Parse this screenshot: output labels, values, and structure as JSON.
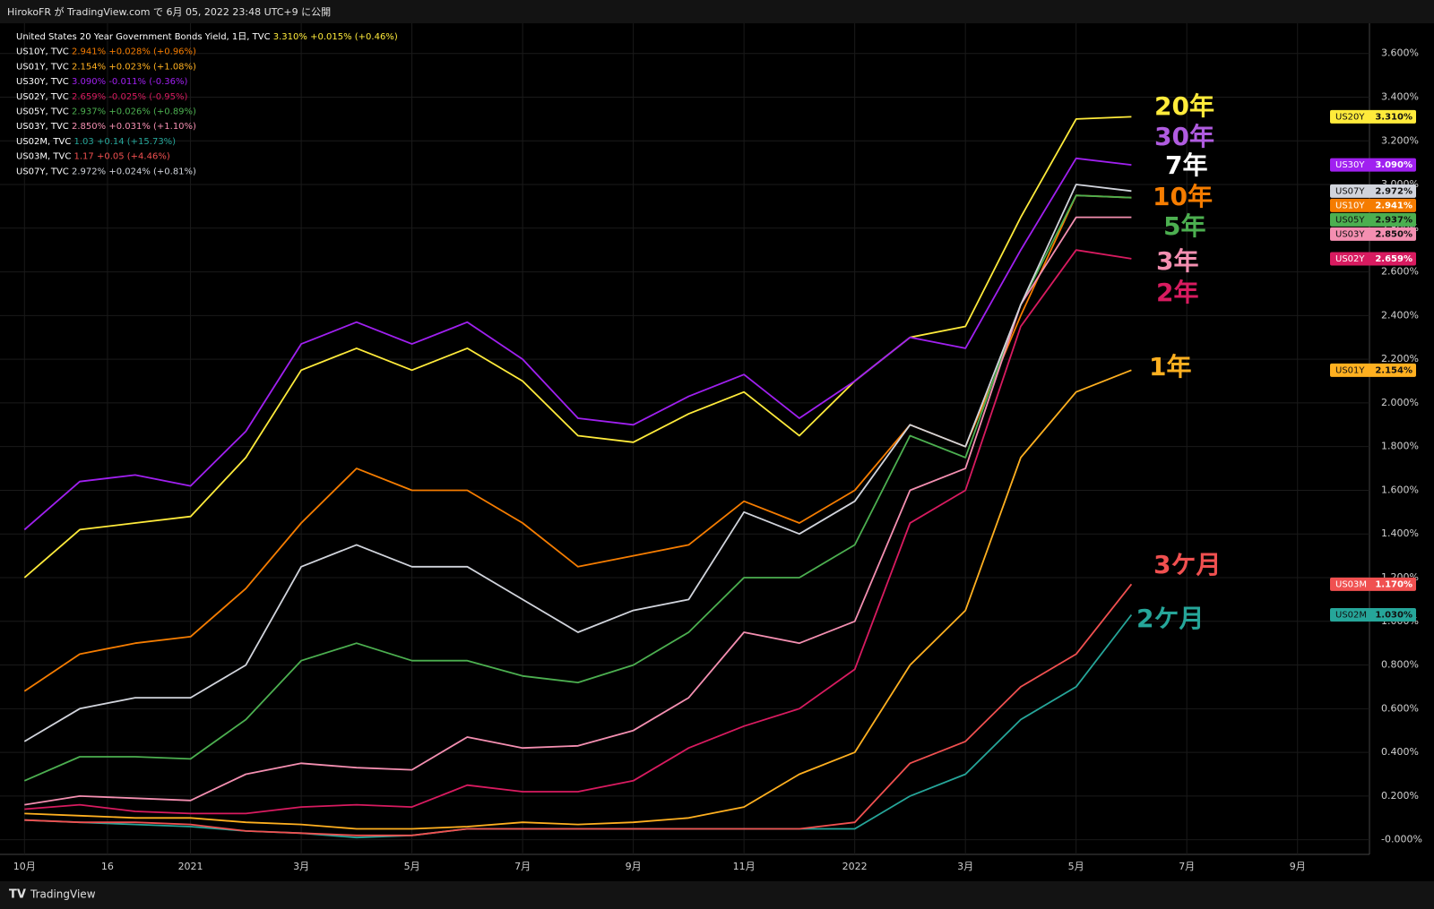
{
  "header": "HirokoFR が TradingView.com で 6月 05, 2022 23:48 UTC+9 に公開",
  "footer": "TradingView",
  "chart_data": {
    "type": "line",
    "x": [
      0,
      1,
      2,
      3,
      4,
      5,
      6,
      7,
      8,
      9,
      10,
      11,
      12,
      13,
      14,
      15,
      16,
      17,
      18,
      19,
      20
    ],
    "xlim": [
      -0.28,
      24.3
    ],
    "xticks": [
      {
        "value": 0,
        "label": "10月"
      },
      {
        "value": 1.5,
        "label": "16"
      },
      {
        "value": 3,
        "label": "2021"
      },
      {
        "value": 5,
        "label": "3月"
      },
      {
        "value": 7,
        "label": "5月"
      },
      {
        "value": 9,
        "label": "7月"
      },
      {
        "value": 11,
        "label": "9月"
      },
      {
        "value": 13,
        "label": "11月"
      },
      {
        "value": 15,
        "label": "2022"
      },
      {
        "value": 17,
        "label": "3月"
      },
      {
        "value": 19,
        "label": "5月"
      },
      {
        "value": 21,
        "label": "7月"
      },
      {
        "value": 23,
        "label": "9月"
      }
    ],
    "ylim": [
      -0.067,
      3.73
    ],
    "yticks": [
      {
        "value": 0,
        "label": "-0.000%"
      },
      {
        "value": 0.2,
        "label": "0.200%"
      },
      {
        "value": 0.4,
        "label": "0.400%"
      },
      {
        "value": 0.6,
        "label": "0.600%"
      },
      {
        "value": 0.8,
        "label": "0.800%"
      },
      {
        "value": 1.0,
        "label": "1.000%"
      },
      {
        "value": 1.2,
        "label": "1.200%"
      },
      {
        "value": 1.4,
        "label": "1.400%"
      },
      {
        "value": 1.6,
        "label": "1.600%"
      },
      {
        "value": 1.8,
        "label": "1.800%"
      },
      {
        "value": 2.0,
        "label": "2.000%"
      },
      {
        "value": 2.2,
        "label": "2.200%"
      },
      {
        "value": 2.4,
        "label": "2.400%"
      },
      {
        "value": 2.6,
        "label": "2.600%"
      },
      {
        "value": 2.8,
        "label": "2.800%"
      },
      {
        "value": 3.0,
        "label": "3.000%"
      },
      {
        "value": 3.2,
        "label": "3.200%"
      },
      {
        "value": 3.4,
        "label": "3.400%"
      },
      {
        "value": 3.6,
        "label": "3.600%"
      }
    ],
    "grid": true,
    "series": [
      {
        "name": "United States 20 Year Government Bonds Yield, 1日, TVC",
        "last_label": "3.310%",
        "change_label": "+0.015% (+0.46%)",
        "tag": "US20Y",
        "tag_label": "3.310%",
        "color": "#ffeb3b",
        "values": [
          1.2,
          1.42,
          1.45,
          1.48,
          1.75,
          2.15,
          2.25,
          2.15,
          2.25,
          2.1,
          1.85,
          1.82,
          1.95,
          2.05,
          1.85,
          2.1,
          2.3,
          2.35,
          2.85,
          3.3,
          3.31
        ]
      },
      {
        "name": "US10Y, TVC",
        "last_label": "2.941%",
        "change_label": "+0.028% (+0.96%)",
        "tag": "US10Y",
        "tag_label": "2.941%",
        "color": "#f57c00",
        "values": [
          0.68,
          0.85,
          0.9,
          0.93,
          1.15,
          1.45,
          1.7,
          1.6,
          1.6,
          1.45,
          1.25,
          1.3,
          1.35,
          1.55,
          1.45,
          1.6,
          1.9,
          1.8,
          2.4,
          2.95,
          2.94
        ]
      },
      {
        "name": "US01Y, TVC",
        "last_label": "2.154%",
        "change_label": "+0.023% (+1.08%)",
        "tag": "US01Y",
        "tag_label": "2.154%",
        "color": "#ffb020",
        "values": [
          0.12,
          0.11,
          0.1,
          0.1,
          0.08,
          0.07,
          0.05,
          0.05,
          0.06,
          0.08,
          0.07,
          0.08,
          0.1,
          0.15,
          0.3,
          0.4,
          0.8,
          1.05,
          1.75,
          2.05,
          2.15
        ]
      },
      {
        "name": "US30Y, TVC",
        "last_label": "3.090%",
        "change_label": "-0.011% (-0.36%)",
        "tag": "US30Y",
        "tag_label": "3.090%",
        "color": "#a020f0",
        "values": [
          1.42,
          1.64,
          1.67,
          1.62,
          1.87,
          2.27,
          2.37,
          2.27,
          2.37,
          2.2,
          1.93,
          1.9,
          2.03,
          2.13,
          1.93,
          2.1,
          2.3,
          2.25,
          2.7,
          3.12,
          3.09
        ]
      },
      {
        "name": "US02Y, TVC",
        "last_label": "2.659%",
        "change_label": "-0.025% (-0.95%)",
        "tag": "US02Y",
        "tag_label": "2.659%",
        "color": "#d81b60",
        "values": [
          0.14,
          0.16,
          0.13,
          0.12,
          0.12,
          0.15,
          0.16,
          0.15,
          0.25,
          0.22,
          0.22,
          0.27,
          0.42,
          0.52,
          0.6,
          0.78,
          1.45,
          1.6,
          2.35,
          2.7,
          2.66
        ]
      },
      {
        "name": "US05Y, TVC",
        "last_label": "2.937%",
        "change_label": "+0.026% (+0.89%)",
        "tag": "US05Y",
        "tag_label": "2.937%",
        "color": "#4caf50",
        "values": [
          0.27,
          0.38,
          0.38,
          0.37,
          0.55,
          0.82,
          0.9,
          0.82,
          0.82,
          0.75,
          0.72,
          0.8,
          0.95,
          1.2,
          1.2,
          1.35,
          1.85,
          1.75,
          2.45,
          2.95,
          2.94
        ]
      },
      {
        "name": "US03Y, TVC",
        "last_label": "2.850%",
        "change_label": "+0.031% (+1.10%)",
        "tag": "US03Y",
        "tag_label": "2.850%",
        "color": "#f48fb1",
        "values": [
          0.16,
          0.2,
          0.19,
          0.18,
          0.3,
          0.35,
          0.33,
          0.32,
          0.47,
          0.42,
          0.43,
          0.5,
          0.65,
          0.95,
          0.9,
          1.0,
          1.6,
          1.7,
          2.45,
          2.85,
          2.85
        ]
      },
      {
        "name": "US02M, TVC",
        "last_label": "1.03",
        "change_label": "+0.14 (+15.73%)",
        "tag": "US02M",
        "tag_label": "1.030%",
        "color": "#26a69a",
        "values": [
          0.09,
          0.08,
          0.07,
          0.06,
          0.04,
          0.03,
          0.01,
          0.02,
          0.05,
          0.05,
          0.05,
          0.05,
          0.05,
          0.05,
          0.05,
          0.05,
          0.2,
          0.3,
          0.55,
          0.7,
          1.03
        ]
      },
      {
        "name": "US03M, TVC",
        "last_label": "1.17",
        "change_label": "+0.05 (+4.46%)",
        "tag": "US03M",
        "tag_label": "1.170%",
        "color": "#f05050",
        "values": [
          0.09,
          0.08,
          0.08,
          0.07,
          0.04,
          0.03,
          0.02,
          0.02,
          0.05,
          0.05,
          0.05,
          0.05,
          0.05,
          0.05,
          0.05,
          0.08,
          0.35,
          0.45,
          0.7,
          0.85,
          1.17
        ]
      },
      {
        "name": "US07Y, TVC",
        "last_label": "2.972%",
        "change_label": "+0.024% (+0.81%)",
        "tag": "US07Y",
        "tag_label": "2.972%",
        "color": "#d1d4dc",
        "values": [
          0.45,
          0.6,
          0.65,
          0.65,
          0.8,
          1.25,
          1.35,
          1.25,
          1.25,
          1.1,
          0.95,
          1.05,
          1.1,
          1.5,
          1.4,
          1.55,
          1.9,
          1.8,
          2.45,
          3.0,
          2.97
        ]
      }
    ],
    "annotations": [
      {
        "text": "20年",
        "color": "#ffeb3b"
      },
      {
        "text": "30年",
        "color": "#b05ce0"
      },
      {
        "text": "7年",
        "color": "#ffffff"
      },
      {
        "text": "10年",
        "color": "#f57c00"
      },
      {
        "text": "5年",
        "color": "#4caf50"
      },
      {
        "text": "3年",
        "color": "#f48fb1"
      },
      {
        "text": "2年",
        "color": "#d81b60"
      },
      {
        "text": "1年",
        "color": "#ffb020"
      },
      {
        "text": "3ケ月",
        "color": "#f05050"
      },
      {
        "text": "2ケ月",
        "color": "#26a69a"
      }
    ]
  }
}
